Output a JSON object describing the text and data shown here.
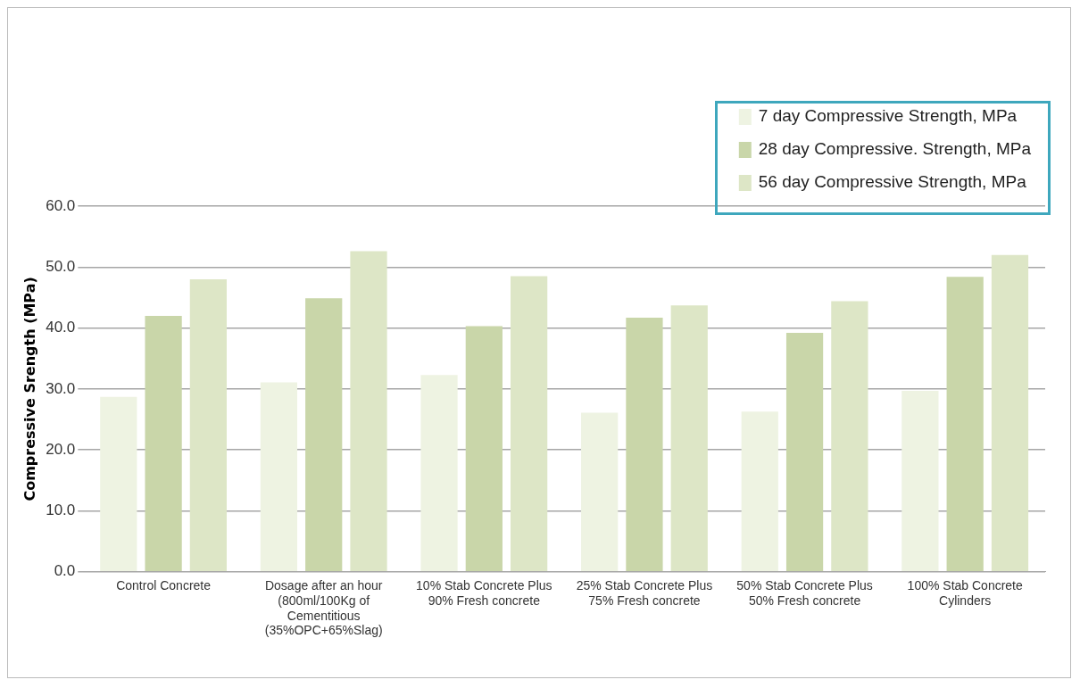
{
  "chart_data": {
    "type": "bar",
    "ylabel": "Compressive Srength (MPa)",
    "categories": [
      "Control Concrete",
      "Dosage after an hour (800ml/100Kg of Cementitious (35%OPC+65%Slag)",
      "10% Stab Concrete Plus 90% Fresh concrete",
      "25% Stab Concrete Plus 75% Fresh concrete",
      "50% Stab Concrete Plus 50% Fresh concrete",
      "100% Stab Concrete Cylinders"
    ],
    "series": [
      {
        "name": "7 day Compressive Strength, MPa",
        "color": "#eef3e2",
        "values": [
          28.7,
          31.1,
          32.3,
          26.1,
          26.3,
          29.7
        ]
      },
      {
        "name": "28 day Compressive. Strength, MPa",
        "color": "#c9d6a9",
        "values": [
          42.0,
          44.9,
          40.3,
          41.7,
          39.2,
          48.4
        ]
      },
      {
        "name": "56 day Compressive Strength, MPa",
        "color": "#dde6c6",
        "values": [
          48.0,
          52.6,
          48.5,
          43.7,
          44.4,
          52.0
        ]
      }
    ],
    "ylim": [
      0,
      60
    ],
    "yticks": [
      {
        "value": 0,
        "label": "0.0"
      },
      {
        "value": 10,
        "label": "10.0"
      },
      {
        "value": 20,
        "label": "20.0"
      },
      {
        "value": 30,
        "label": "30.0"
      },
      {
        "value": 40,
        "label": "40.0"
      },
      {
        "value": 50,
        "label": "50.0"
      },
      {
        "value": 60,
        "label": "60.0"
      }
    ],
    "grid": "y",
    "legend": "top right"
  }
}
